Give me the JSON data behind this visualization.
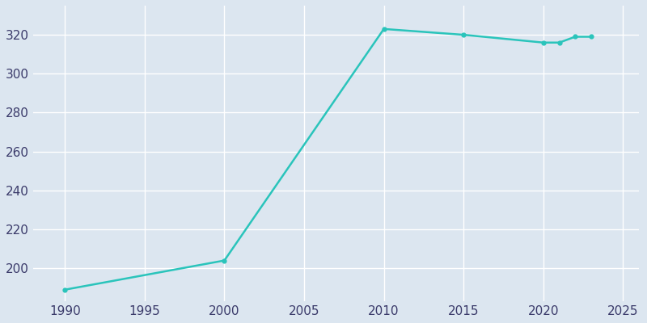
{
  "years": [
    1990,
    2000,
    2010,
    2015,
    2020,
    2021,
    2022,
    2023
  ],
  "population": [
    189,
    204,
    323,
    320,
    316,
    316,
    319,
    319
  ],
  "line_color": "#2ac4bb",
  "marker_color": "#2ac4bb",
  "axes_facecolor": "#dce6f0",
  "figure_facecolor": "#dce6f0",
  "grid_color": "#FFFFFF",
  "tick_color": "#3A3A6A",
  "xlim": [
    1988,
    2026
  ],
  "ylim": [
    183,
    335
  ],
  "yticks": [
    200,
    220,
    240,
    260,
    280,
    300,
    320
  ],
  "xticks": [
    1990,
    1995,
    2000,
    2005,
    2010,
    2015,
    2020,
    2025
  ],
  "line_width": 1.8,
  "marker_size": 3.5
}
